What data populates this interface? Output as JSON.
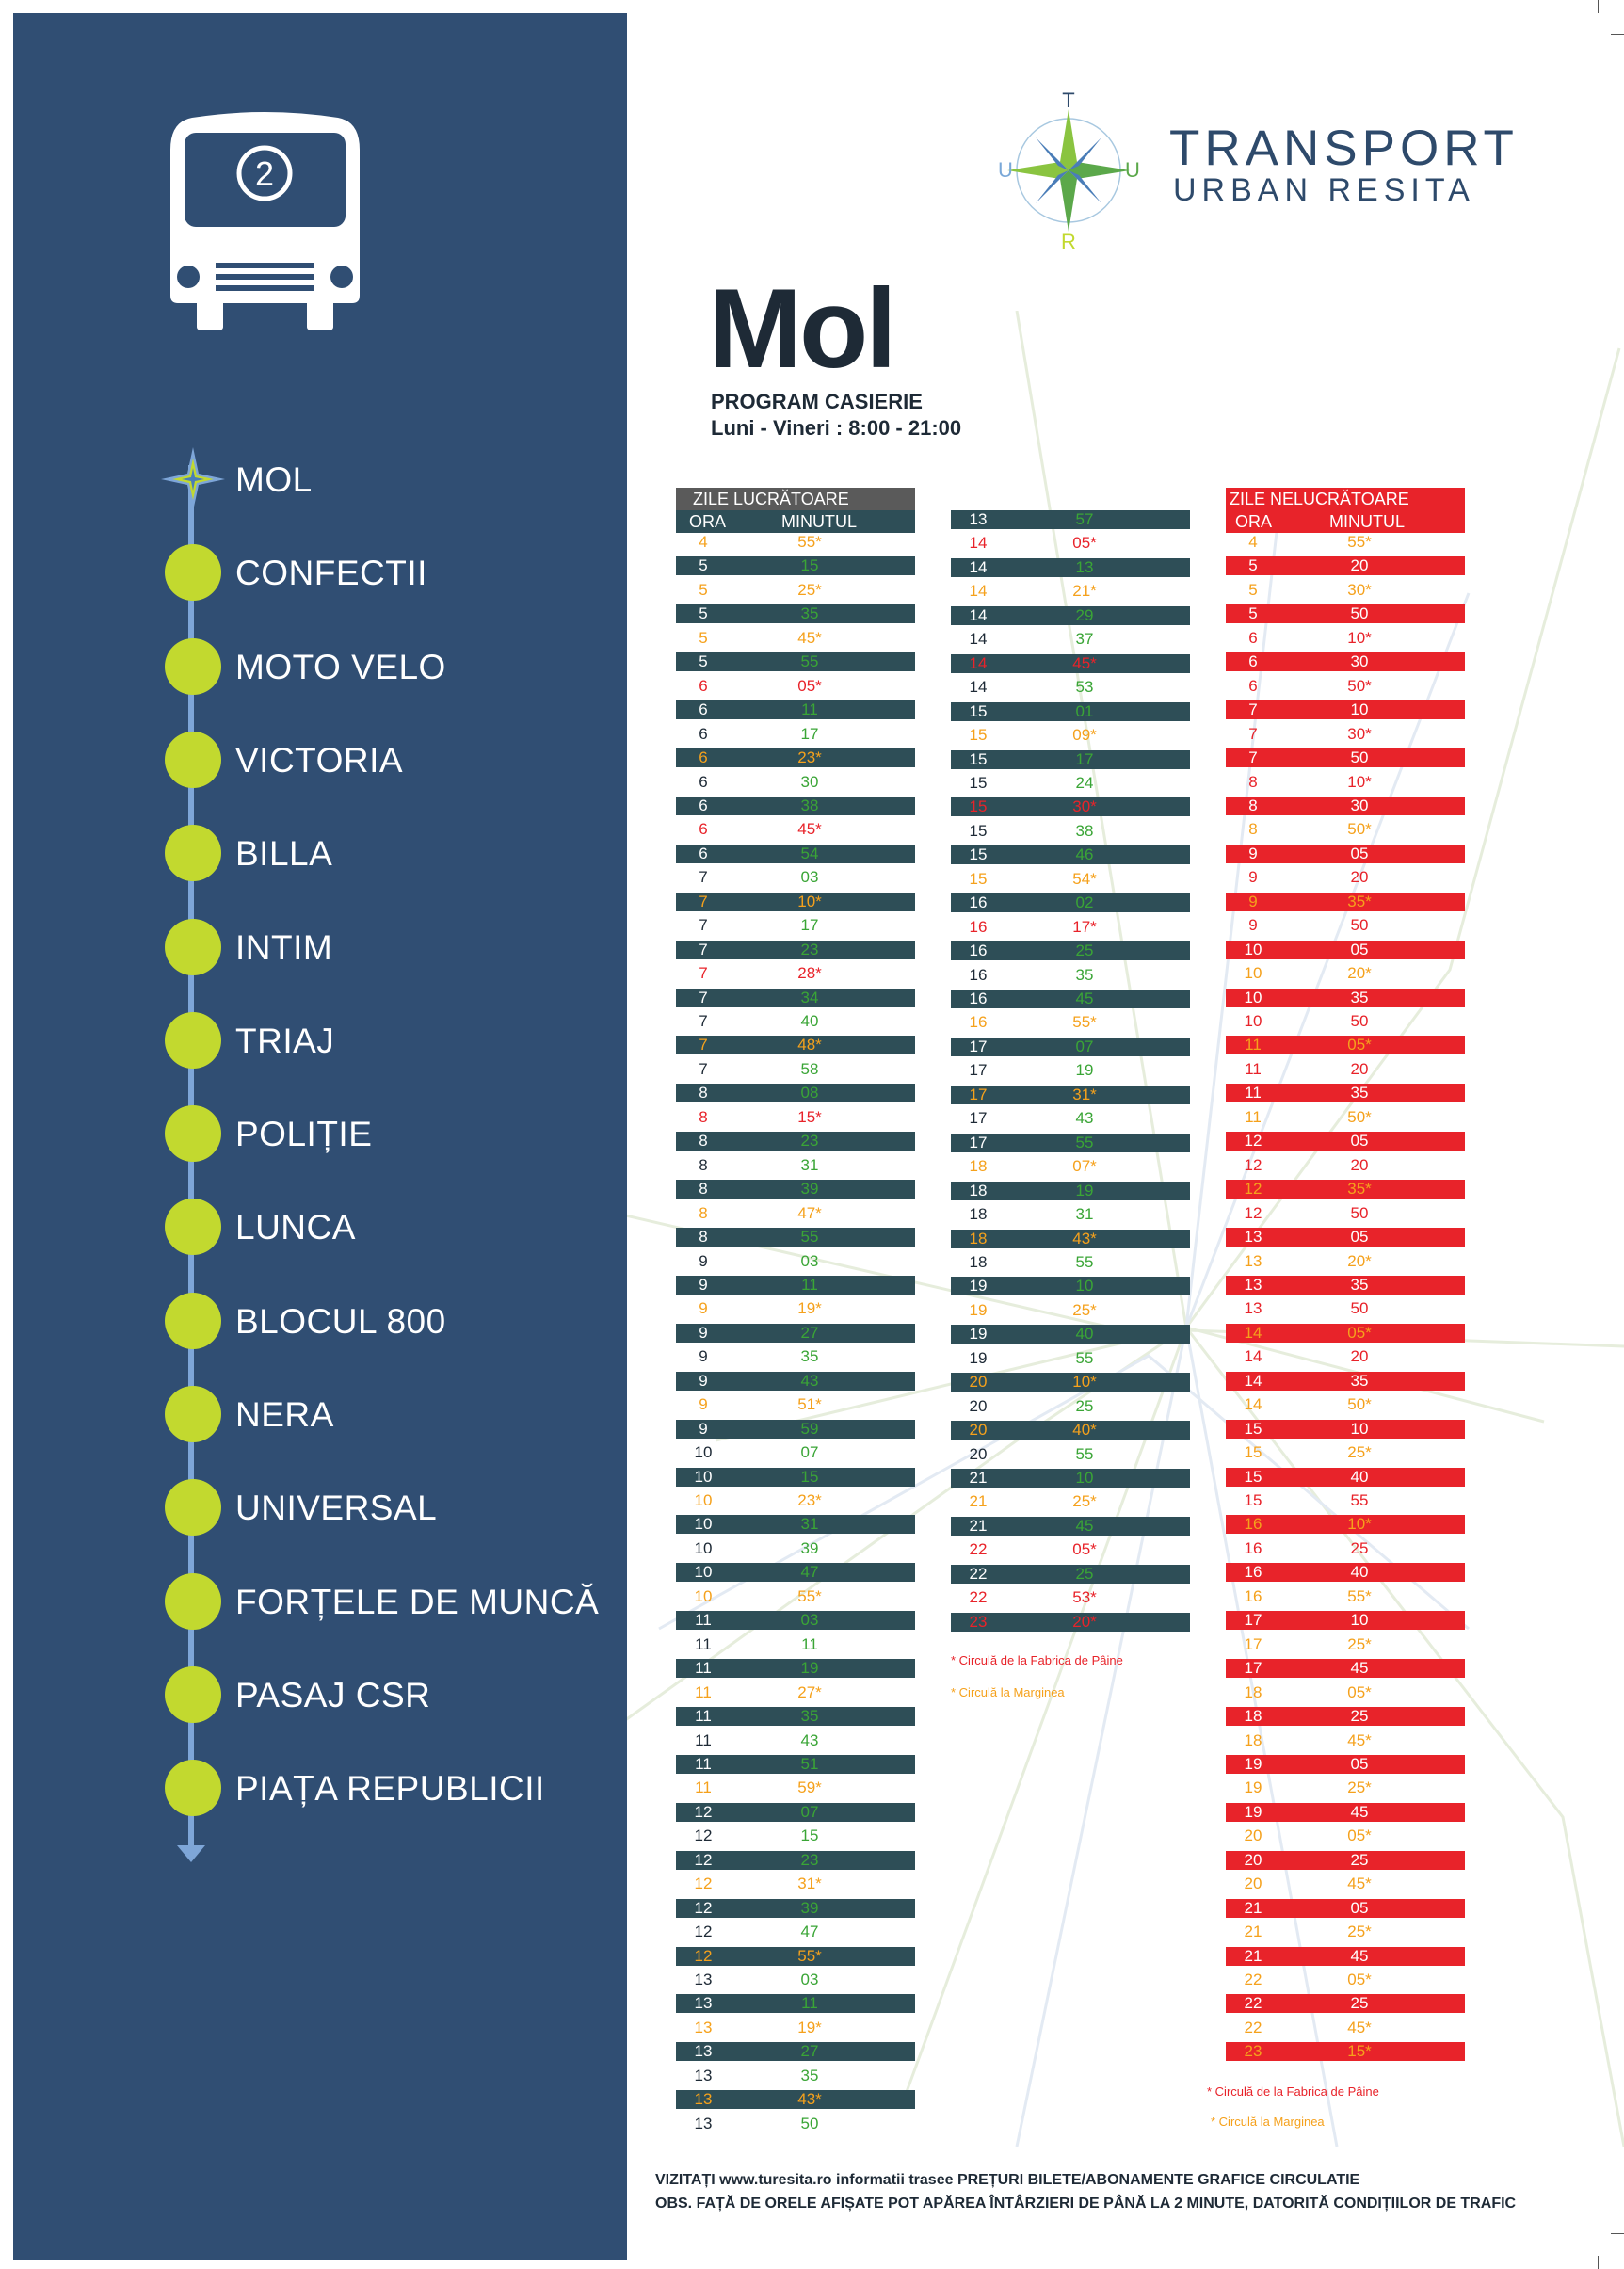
{
  "route_number": "2",
  "stops": [
    {
      "label": "MOL",
      "current": true
    },
    {
      "label": "CONFECTII",
      "current": false
    },
    {
      "label": "MOTO VELO",
      "current": false
    },
    {
      "label": "VICTORIA",
      "current": false
    },
    {
      "label": "BILLA",
      "current": false
    },
    {
      "label": "INTIM",
      "current": false
    },
    {
      "label": "TRIAJ",
      "current": false
    },
    {
      "label": "POLIȚIE",
      "current": false
    },
    {
      "label": "LUNCA",
      "current": false
    },
    {
      "label": "BLOCUL 800",
      "current": false
    },
    {
      "label": "NERA",
      "current": false
    },
    {
      "label": "UNIVERSAL",
      "current": false
    },
    {
      "label": "FORȚELE DE MUNCĂ",
      "current": false
    },
    {
      "label": "PASAJ CSR",
      "current": false
    },
    {
      "label": "PIAȚA REPUBLICII",
      "current": false
    }
  ],
  "brand": {
    "line1": "TRANSPORT",
    "line2": "URBAN RESITA",
    "logo_letters": [
      "T",
      "U",
      "R",
      "U"
    ]
  },
  "stop_title": "Mol",
  "program": {
    "label": "PROGRAM CASIERIE",
    "hours": "Luni - Vineri : 8:00 - 21:00"
  },
  "colors": {
    "sidebar": "#304e73",
    "route_dot": "#c2d92f",
    "route_line": "#7ea6d8",
    "row_dark": "#2e4e57",
    "row_red": "#e8232a",
    "header_gray": "#5a5a5a",
    "minute_green": "#3aa536",
    "minute_orange": "#f5a11c",
    "minute_red": "#e8232a"
  },
  "weekday": {
    "title": "ZILE LUCRĂTOARE",
    "col_hour": "ORA",
    "col_minute": "MINUTUL",
    "rows": [
      [
        "4",
        "55*",
        "o"
      ],
      [
        "5",
        "15",
        "g"
      ],
      [
        "5",
        "25*",
        "o"
      ],
      [
        "5",
        "35",
        "g"
      ],
      [
        "5",
        "45*",
        "o"
      ],
      [
        "5",
        "55",
        "g"
      ],
      [
        "6",
        "05*",
        "r"
      ],
      [
        "6",
        "11",
        "g"
      ],
      [
        "6",
        "17",
        "g"
      ],
      [
        "6",
        "23*",
        "o"
      ],
      [
        "6",
        "30",
        "g"
      ],
      [
        "6",
        "38",
        "g"
      ],
      [
        "6",
        "45*",
        "r"
      ],
      [
        "6",
        "54",
        "g"
      ],
      [
        "7",
        "03",
        "g"
      ],
      [
        "7",
        "10*",
        "o"
      ],
      [
        "7",
        "17",
        "g"
      ],
      [
        "7",
        "23",
        "g"
      ],
      [
        "7",
        "28*",
        "r"
      ],
      [
        "7",
        "34",
        "g"
      ],
      [
        "7",
        "40",
        "g"
      ],
      [
        "7",
        "48*",
        "o"
      ],
      [
        "7",
        "58",
        "g"
      ],
      [
        "8",
        "08",
        "g"
      ],
      [
        "8",
        "15*",
        "r"
      ],
      [
        "8",
        "23",
        "g"
      ],
      [
        "8",
        "31",
        "g"
      ],
      [
        "8",
        "39",
        "g"
      ],
      [
        "8",
        "47*",
        "o"
      ],
      [
        "8",
        "55",
        "g"
      ],
      [
        "9",
        "03",
        "g"
      ],
      [
        "9",
        "11",
        "g"
      ],
      [
        "9",
        "19*",
        "o"
      ],
      [
        "9",
        "27",
        "g"
      ],
      [
        "9",
        "35",
        "g"
      ],
      [
        "9",
        "43",
        "g"
      ],
      [
        "9",
        "51*",
        "o"
      ],
      [
        "9",
        "59",
        "g"
      ],
      [
        "10",
        "07",
        "g"
      ],
      [
        "10",
        "15",
        "g"
      ],
      [
        "10",
        "23*",
        "o"
      ],
      [
        "10",
        "31",
        "g"
      ],
      [
        "10",
        "39",
        "g"
      ],
      [
        "10",
        "47",
        "g"
      ],
      [
        "10",
        "55*",
        "o"
      ],
      [
        "11",
        "03",
        "g"
      ],
      [
        "11",
        "11",
        "g"
      ],
      [
        "11",
        "19",
        "g"
      ],
      [
        "11",
        "27*",
        "o"
      ],
      [
        "11",
        "35",
        "g"
      ],
      [
        "11",
        "43",
        "g"
      ],
      [
        "11",
        "51",
        "g"
      ],
      [
        "11",
        "59*",
        "o"
      ],
      [
        "12",
        "07",
        "g"
      ],
      [
        "12",
        "15",
        "g"
      ],
      [
        "12",
        "23",
        "g"
      ],
      [
        "12",
        "31*",
        "o"
      ],
      [
        "12",
        "39",
        "g"
      ],
      [
        "12",
        "47",
        "g"
      ],
      [
        "12",
        "55*",
        "o"
      ],
      [
        "13",
        "03",
        "g"
      ],
      [
        "13",
        "11",
        "g"
      ],
      [
        "13",
        "19*",
        "o"
      ],
      [
        "13",
        "27",
        "g"
      ],
      [
        "13",
        "35",
        "g"
      ],
      [
        "13",
        "43*",
        "o"
      ],
      [
        "13",
        "50",
        "g"
      ]
    ],
    "rows2": [
      [
        "13",
        "57",
        "g"
      ],
      [
        "14",
        "05*",
        "r"
      ],
      [
        "14",
        "13",
        "g"
      ],
      [
        "14",
        "21*",
        "o"
      ],
      [
        "14",
        "29",
        "g"
      ],
      [
        "14",
        "37",
        "g"
      ],
      [
        "14",
        "45*",
        "r"
      ],
      [
        "14",
        "53",
        "g"
      ],
      [
        "15",
        "01",
        "g"
      ],
      [
        "15",
        "09*",
        "o"
      ],
      [
        "15",
        "17",
        "g"
      ],
      [
        "15",
        "24",
        "g"
      ],
      [
        "15",
        "30*",
        "r"
      ],
      [
        "15",
        "38",
        "g"
      ],
      [
        "15",
        "46",
        "g"
      ],
      [
        "15",
        "54*",
        "o"
      ],
      [
        "16",
        "02",
        "g"
      ],
      [
        "16",
        "17*",
        "r"
      ],
      [
        "16",
        "25",
        "g"
      ],
      [
        "16",
        "35",
        "g"
      ],
      [
        "16",
        "45",
        "g"
      ],
      [
        "16",
        "55*",
        "o"
      ],
      [
        "17",
        "07",
        "g"
      ],
      [
        "17",
        "19",
        "g"
      ],
      [
        "17",
        "31*",
        "o"
      ],
      [
        "17",
        "43",
        "g"
      ],
      [
        "17",
        "55",
        "g"
      ],
      [
        "18",
        "07*",
        "o"
      ],
      [
        "18",
        "19",
        "g"
      ],
      [
        "18",
        "31",
        "g"
      ],
      [
        "18",
        "43*",
        "o"
      ],
      [
        "18",
        "55",
        "g"
      ],
      [
        "19",
        "10",
        "g"
      ],
      [
        "19",
        "25*",
        "o"
      ],
      [
        "19",
        "40",
        "g"
      ],
      [
        "19",
        "55",
        "g"
      ],
      [
        "20",
        "10*",
        "o"
      ],
      [
        "20",
        "25",
        "g"
      ],
      [
        "20",
        "40*",
        "o"
      ],
      [
        "20",
        "55",
        "g"
      ],
      [
        "21",
        "10",
        "g"
      ],
      [
        "21",
        "25*",
        "o"
      ],
      [
        "21",
        "45",
        "g"
      ],
      [
        "22",
        "05*",
        "r"
      ],
      [
        "22",
        "25",
        "g"
      ],
      [
        "22",
        "53*",
        "r"
      ],
      [
        "23",
        "20*",
        "r"
      ]
    ],
    "note_red": "* Circulă de la Fabrica de Pâine",
    "note_orange": "* Circulă la Marginea"
  },
  "weekend": {
    "title": "ZILE NELUCRĂTOARE",
    "col_hour": "ORA",
    "col_minute": "MINUTUL",
    "rows": [
      [
        "4",
        "55*",
        "o"
      ],
      [
        "5",
        "20",
        "g"
      ],
      [
        "5",
        "30*",
        "o"
      ],
      [
        "5",
        "50",
        "g"
      ],
      [
        "6",
        "10*",
        "r"
      ],
      [
        "6",
        "30",
        "g"
      ],
      [
        "6",
        "50*",
        "r"
      ],
      [
        "7",
        "10",
        "g"
      ],
      [
        "7",
        "30*",
        "r"
      ],
      [
        "7",
        "50",
        "g"
      ],
      [
        "8",
        "10*",
        "r"
      ],
      [
        "8",
        "30",
        "g"
      ],
      [
        "8",
        "50*",
        "o"
      ],
      [
        "9",
        "05",
        "g"
      ],
      [
        "9",
        "20",
        "g"
      ],
      [
        "9",
        "35*",
        "o"
      ],
      [
        "9",
        "50",
        "g"
      ],
      [
        "10",
        "05",
        "g"
      ],
      [
        "10",
        "20*",
        "o"
      ],
      [
        "10",
        "35",
        "g"
      ],
      [
        "10",
        "50",
        "g"
      ],
      [
        "11",
        "05*",
        "o"
      ],
      [
        "11",
        "20",
        "g"
      ],
      [
        "11",
        "35",
        "g"
      ],
      [
        "11",
        "50*",
        "o"
      ],
      [
        "12",
        "05",
        "g"
      ],
      [
        "12",
        "20",
        "g"
      ],
      [
        "12",
        "35*",
        "o"
      ],
      [
        "12",
        "50",
        "g"
      ],
      [
        "13",
        "05",
        "g"
      ],
      [
        "13",
        "20*",
        "o"
      ],
      [
        "13",
        "35",
        "g"
      ],
      [
        "13",
        "50",
        "g"
      ],
      [
        "14",
        "05*",
        "o"
      ],
      [
        "14",
        "20",
        "g"
      ],
      [
        "14",
        "35",
        "g"
      ],
      [
        "14",
        "50*",
        "o"
      ],
      [
        "15",
        "10",
        "g"
      ],
      [
        "15",
        "25*",
        "o"
      ],
      [
        "15",
        "40",
        "g"
      ],
      [
        "15",
        "55",
        "g"
      ],
      [
        "16",
        "10*",
        "o"
      ],
      [
        "16",
        "25",
        "g"
      ],
      [
        "16",
        "40",
        "g"
      ],
      [
        "16",
        "55*",
        "o"
      ],
      [
        "17",
        "10",
        "g"
      ],
      [
        "17",
        "25*",
        "o"
      ],
      [
        "17",
        "45",
        "g"
      ],
      [
        "18",
        "05*",
        "o"
      ],
      [
        "18",
        "25",
        "g"
      ],
      [
        "18",
        "45*",
        "o"
      ],
      [
        "19",
        "05",
        "g"
      ],
      [
        "19",
        "25*",
        "o"
      ],
      [
        "19",
        "45",
        "g"
      ],
      [
        "20",
        "05*",
        "o"
      ],
      [
        "20",
        "25",
        "g"
      ],
      [
        "20",
        "45*",
        "o"
      ],
      [
        "21",
        "05",
        "g"
      ],
      [
        "21",
        "25*",
        "o"
      ],
      [
        "21",
        "45",
        "g"
      ],
      [
        "22",
        "05*",
        "o"
      ],
      [
        "22",
        "25",
        "g"
      ],
      [
        "22",
        "45*",
        "o"
      ],
      [
        "23",
        "15*",
        "o"
      ]
    ],
    "note_red": "* Circulă de la Fabrica de Pâine",
    "note_orange": "* Circulă la Marginea"
  },
  "footer": {
    "line1": "VIZITAȚI www.turesita.ro informatii trasee PREȚURI BILETE/ABONAMENTE GRAFICE CIRCULATIE",
    "line2": "OBS. FAȚĂ DE ORELE AFIȘATE POT APĂREA ÎNTÂRZIERI DE PÂNĂ LA 2 MINUTE, DATORITĂ CONDIȚIILOR DE TRAFIC"
  }
}
